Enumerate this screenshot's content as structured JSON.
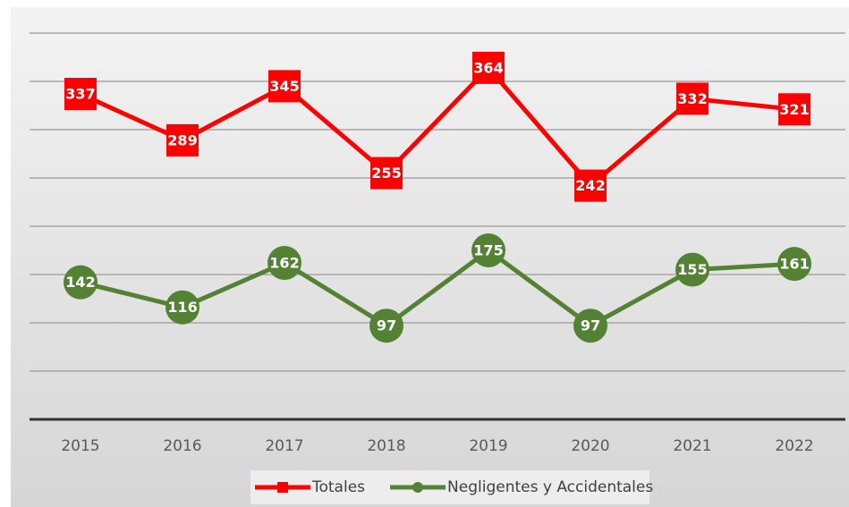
{
  "chart_data": {
    "type": "line",
    "categories": [
      "2015",
      "2016",
      "2017",
      "2018",
      "2019",
      "2020",
      "2021",
      "2022"
    ],
    "series": [
      {
        "name": "Totales",
        "color": "#ff0000",
        "marker": "square",
        "values": [
          337,
          289,
          345,
          255,
          364,
          242,
          332,
          321
        ]
      },
      {
        "name": "Negligentes y Accidentales",
        "color": "#548235",
        "marker": "circle",
        "values": [
          142,
          116,
          162,
          97,
          175,
          97,
          155,
          161
        ]
      }
    ],
    "ylim": [
      0,
      400
    ],
    "yticks": [
      0,
      50,
      100,
      150,
      200,
      250,
      300,
      350,
      400
    ],
    "grid": true,
    "legend": "bottom"
  }
}
